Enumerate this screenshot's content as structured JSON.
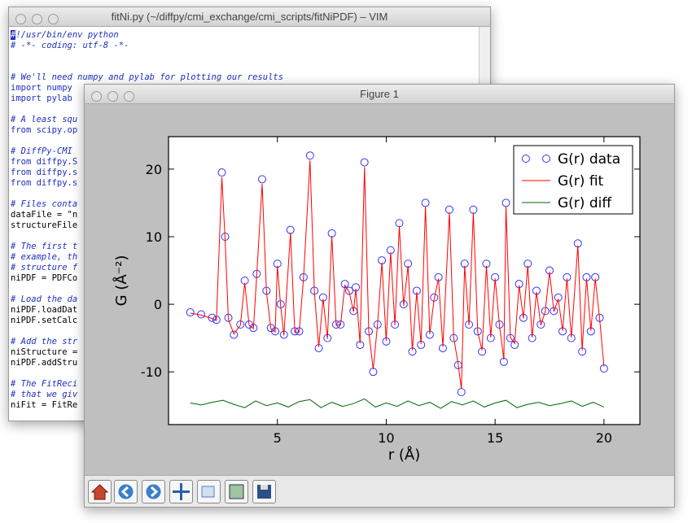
{
  "vim": {
    "title": "fitNi.py (~/diffpy/cmi_exchange/cmi_scripts/fitNiPDF) – VIM",
    "blocks": [
      [
        "#!/usr/bin/env python",
        "# -*- coding: utf-8 -*-"
      ],
      [
        "# We'll need numpy and pylab for plotting our results",
        "import numpy",
        "import pylab"
      ],
      [
        "# A least squ",
        "from scipy.op"
      ],
      [
        "# DiffPy-CMI",
        "from diffpy.S",
        "from diffpy.s",
        "from diffpy.s"
      ],
      [
        "# Files conta",
        "dataFile = \"n",
        "structureFile"
      ],
      [
        "# The first t",
        "# example, th",
        "# structure f",
        "niPDF = PDFCo"
      ],
      [
        "# Load the da",
        "niPDF.loadDat",
        "niPDF.setCalc"
      ],
      [
        "# Add the str",
        "niStructure =",
        "niPDF.addStru"
      ],
      [
        "# The FitReci",
        "# that we giv",
        "niFit = FitRe"
      ]
    ]
  },
  "figure": {
    "title": "Figure 1"
  },
  "chart_data": {
    "type": "line",
    "xlabel": "r (Å)",
    "ylabel": "G (Å⁻²)",
    "xlim": [
      0,
      21.65
    ],
    "ylim": [
      -17.8,
      24.8
    ],
    "xticks": [
      5,
      10,
      15,
      20
    ],
    "yticks": [
      -10,
      0,
      10,
      20
    ],
    "legend": "upper right",
    "x": [
      1.0,
      1.5,
      2.0,
      2.2,
      2.45,
      2.6,
      2.75,
      3.0,
      3.3,
      3.5,
      3.7,
      3.9,
      4.05,
      4.3,
      4.5,
      4.7,
      4.9,
      5.0,
      5.15,
      5.3,
      5.6,
      5.8,
      6.0,
      6.2,
      6.5,
      6.7,
      6.9,
      7.1,
      7.3,
      7.5,
      7.7,
      7.9,
      8.1,
      8.3,
      8.5,
      8.6,
      8.8,
      9.0,
      9.2,
      9.4,
      9.6,
      9.8,
      10.0,
      10.2,
      10.4,
      10.6,
      10.8,
      11.0,
      11.2,
      11.4,
      11.6,
      11.8,
      12.0,
      12.2,
      12.4,
      12.6,
      12.9,
      13.1,
      13.3,
      13.45,
      13.6,
      13.8,
      14.0,
      14.2,
      14.4,
      14.6,
      14.8,
      15.0,
      15.2,
      15.4,
      15.5,
      15.7,
      15.9,
      16.1,
      16.3,
      16.5,
      16.7,
      16.9,
      17.1,
      17.3,
      17.5,
      17.7,
      17.9,
      18.1,
      18.3,
      18.5,
      18.8,
      19.0,
      19.2,
      19.4,
      19.6,
      19.8,
      20.0
    ],
    "series": [
      {
        "name": "G(r) data",
        "color": "#3333ff",
        "marker": "circle",
        "values": [
          -1.2,
          -1.5,
          -2,
          -2.3,
          19.5,
          10,
          -2,
          -4.5,
          -3,
          3.5,
          -3,
          -3.5,
          4.5,
          18.5,
          2,
          -3.5,
          -4,
          6,
          0,
          -4.5,
          11,
          -4,
          -4,
          4,
          22,
          2,
          -6.5,
          1,
          -5,
          10.5,
          -3,
          -3,
          3,
          2,
          -1,
          2.5,
          -6,
          21,
          -4,
          -10,
          -3,
          6.5,
          -5.5,
          8,
          -3,
          12,
          0,
          6,
          -7,
          2,
          -6,
          15,
          -4.5,
          1,
          4,
          -6.5,
          14,
          -5,
          -9,
          -13,
          6,
          -3,
          14,
          -4,
          -7,
          6,
          -5,
          4,
          -3,
          -8.5,
          15,
          -5,
          -6,
          3,
          -2,
          6,
          -5,
          2,
          -3,
          -1,
          5,
          -1,
          1,
          -4,
          4,
          -5,
          9,
          -7,
          4,
          -4,
          4,
          -2,
          -9.5
        ]
      },
      {
        "name": "G(r) fit",
        "color": "#ff0000",
        "marker": "line",
        "values": [
          -1.3,
          -1.6,
          -2.1,
          -2.4,
          18.8,
          9.6,
          -2.2,
          -4.4,
          -3.1,
          3.2,
          -3.1,
          -3.6,
          4.2,
          17.8,
          1.8,
          -3.6,
          -4.1,
          5.7,
          -0.2,
          -4.6,
          10.6,
          -4.1,
          -4.1,
          3.8,
          21.3,
          1.8,
          -6.3,
          0.8,
          -5.1,
          10.1,
          -3.1,
          -3.1,
          2.8,
          1.8,
          -1.1,
          2.3,
          -5.8,
          20.3,
          -4.1,
          -9.6,
          -3.1,
          6.2,
          -5.4,
          7.7,
          -3.1,
          11.6,
          -0.2,
          5.7,
          -6.8,
          1.8,
          -5.9,
          14.5,
          -4.4,
          0.8,
          3.8,
          -6.3,
          13.6,
          -4.9,
          -8.8,
          -12.5,
          5.7,
          -3.1,
          13.6,
          -4.1,
          -6.8,
          5.7,
          -4.9,
          3.8,
          -3.1,
          -8.2,
          14.5,
          -4.9,
          -5.8,
          2.8,
          -2.1,
          5.7,
          -4.9,
          1.8,
          -3.1,
          -1.1,
          4.8,
          -1.1,
          0.8,
          -3.9,
          3.8,
          -4.9,
          8.7,
          -6.8,
          3.8,
          -3.9,
          3.8,
          -2.1,
          -9.2
        ]
      },
      {
        "name": "G(r) diff",
        "color": "#006600",
        "marker": "line",
        "x": [
          1.0,
          1.5,
          2.0,
          2.5,
          3.0,
          3.5,
          4.0,
          4.5,
          5.0,
          5.5,
          6.0,
          6.5,
          7.0,
          7.5,
          8.0,
          8.5,
          9.0,
          9.5,
          10.0,
          10.5,
          11.0,
          11.5,
          12.0,
          12.5,
          13.0,
          13.5,
          14.0,
          14.5,
          15.0,
          15.5,
          16.0,
          16.5,
          17.0,
          17.5,
          18.0,
          18.5,
          19.0,
          19.5,
          20.0
        ],
        "values": [
          -14.6,
          -14.9,
          -14.5,
          -14.2,
          -14.8,
          -15.3,
          -14.3,
          -15.0,
          -14.6,
          -15.2,
          -14.4,
          -14.1,
          -15.3,
          -14.5,
          -15.1,
          -14.7,
          -14.0,
          -15.2,
          -14.6,
          -15.1,
          -14.3,
          -15.0,
          -14.5,
          -15.4,
          -14.4,
          -14.9,
          -14.3,
          -15.2,
          -14.6,
          -14.2,
          -15.3,
          -14.8,
          -14.5,
          -15.0,
          -14.7,
          -14.3,
          -15.1,
          -14.5,
          -15.2
        ]
      }
    ]
  }
}
